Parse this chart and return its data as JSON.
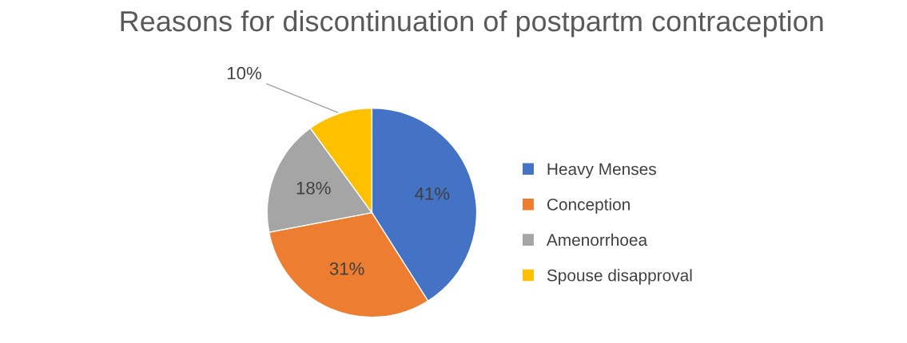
{
  "chart_data": {
    "type": "pie",
    "title": "Reasons for discontinuation of postpartm contraception",
    "categories": [
      "Heavy Menses",
      "Conception",
      "Amenorrhoea",
      "Spouse disapproval"
    ],
    "values": [
      41,
      31,
      18,
      10
    ],
    "value_labels": [
      "41%",
      "31%",
      "18%",
      "10%"
    ],
    "colors": [
      "#4472c4",
      "#ed7d31",
      "#a5a5a5",
      "#ffc000"
    ],
    "legend": "right"
  }
}
